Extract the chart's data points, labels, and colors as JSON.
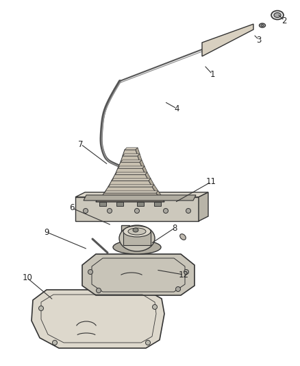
{
  "background_color": "#ffffff",
  "line_color": "#333333",
  "label_color": "#222222",
  "fig_width": 4.39,
  "fig_height": 5.33,
  "dpi": 100,
  "label_info": [
    [
      "1",
      310,
      108,
      298,
      95
    ],
    [
      "2",
      415,
      30,
      405,
      20
    ],
    [
      "3",
      378,
      58,
      370,
      50
    ],
    [
      "4",
      258,
      158,
      240,
      148
    ],
    [
      "6",
      105,
      303,
      163,
      328
    ],
    [
      "7",
      118,
      210,
      158,
      240
    ],
    [
      "8",
      255,
      332,
      220,
      355
    ],
    [
      "9",
      68,
      338,
      128,
      363
    ],
    [
      "10",
      40,
      405,
      78,
      437
    ],
    [
      "11",
      308,
      265,
      255,
      295
    ],
    [
      "12",
      268,
      400,
      228,
      393
    ]
  ]
}
